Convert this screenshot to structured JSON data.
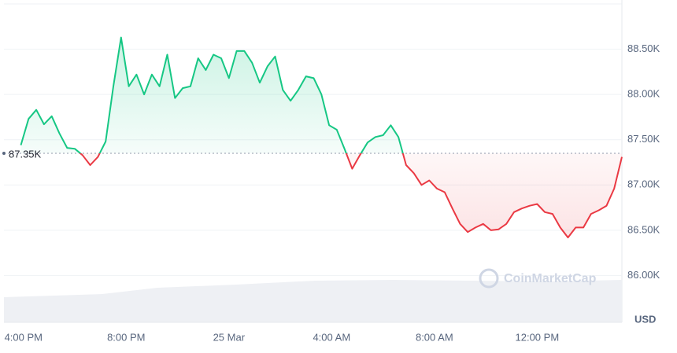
{
  "chart_data": {
    "type": "line",
    "baseline": {
      "value": 87350,
      "label": "87.35K"
    },
    "x": [
      -0.1,
      0.2,
      0.5,
      0.8,
      1.1,
      1.4,
      1.7,
      2.0,
      2.3,
      2.6,
      2.9,
      3.2,
      3.5,
      3.8,
      4.1,
      4.4,
      4.7,
      5.0,
      5.3,
      5.6,
      5.9,
      6.2,
      6.5,
      6.8,
      7.1,
      7.4,
      7.7,
      8.0,
      8.3,
      8.6,
      8.9,
      9.2,
      9.5,
      9.8,
      10.1,
      10.4,
      10.7,
      11.0,
      11.3,
      11.6,
      11.9,
      12.2,
      12.5,
      12.8,
      13.1,
      13.4,
      13.7,
      14.0,
      14.3,
      14.6,
      14.9,
      15.2,
      15.5,
      15.8,
      16.1,
      16.4,
      16.7,
      17.0,
      17.3,
      17.6,
      17.9,
      18.2,
      18.5,
      18.8,
      19.1,
      19.4,
      19.7,
      20.0,
      20.3,
      20.6,
      20.9,
      21.2,
      21.5,
      21.8,
      22.1,
      22.4,
      22.7,
      23.0,
      23.3
    ],
    "series": [
      {
        "name": "USD",
        "up_color": "#16c784",
        "down_color": "#ea3943",
        "values": [
          87440,
          87730,
          87830,
          87670,
          87760,
          87570,
          87410,
          87400,
          87330,
          87220,
          87310,
          87480,
          88090,
          88630,
          88090,
          88220,
          88000,
          88220,
          88090,
          88440,
          87960,
          88070,
          88090,
          88400,
          88270,
          88440,
          88400,
          88180,
          88480,
          88480,
          88350,
          88130,
          88310,
          88420,
          88050,
          87930,
          88050,
          88200,
          88180,
          88000,
          87660,
          87610,
          87400,
          87180,
          87330,
          87470,
          87530,
          87550,
          87660,
          87530,
          87220,
          87130,
          87000,
          87050,
          86960,
          86920,
          86740,
          86570,
          86480,
          86530,
          86570,
          86500,
          86510,
          86570,
          86700,
          86740,
          86770,
          86790,
          86700,
          86680,
          86530,
          86420,
          86530,
          86530,
          86680,
          86720,
          86770,
          86960,
          87310
        ]
      }
    ],
    "xlim": [
      -0.76,
      23.3
    ],
    "xticks": [
      {
        "value": 0,
        "label": "4:00 PM"
      },
      {
        "value": 4,
        "label": "8:00 PM"
      },
      {
        "value": 8,
        "label": "25 Mar"
      },
      {
        "value": 12,
        "label": "4:00 AM"
      },
      {
        "value": 16,
        "label": "8:00 AM"
      },
      {
        "value": 20,
        "label": "12:00 PM"
      }
    ],
    "ylim": [
      85500,
      89000
    ],
    "yticks": [
      {
        "value": 86000,
        "label": "86.00K"
      },
      {
        "value": 86500,
        "label": "86.50K"
      },
      {
        "value": 87000,
        "label": "87.00K"
      },
      {
        "value": 87500,
        "label": "87.50K"
      },
      {
        "value": 88000,
        "label": "88.00K"
      },
      {
        "value": 88500,
        "label": "88.50K"
      }
    ],
    "grid": true,
    "axis_unit": "USD",
    "watermark": "CoinMarketCap"
  }
}
